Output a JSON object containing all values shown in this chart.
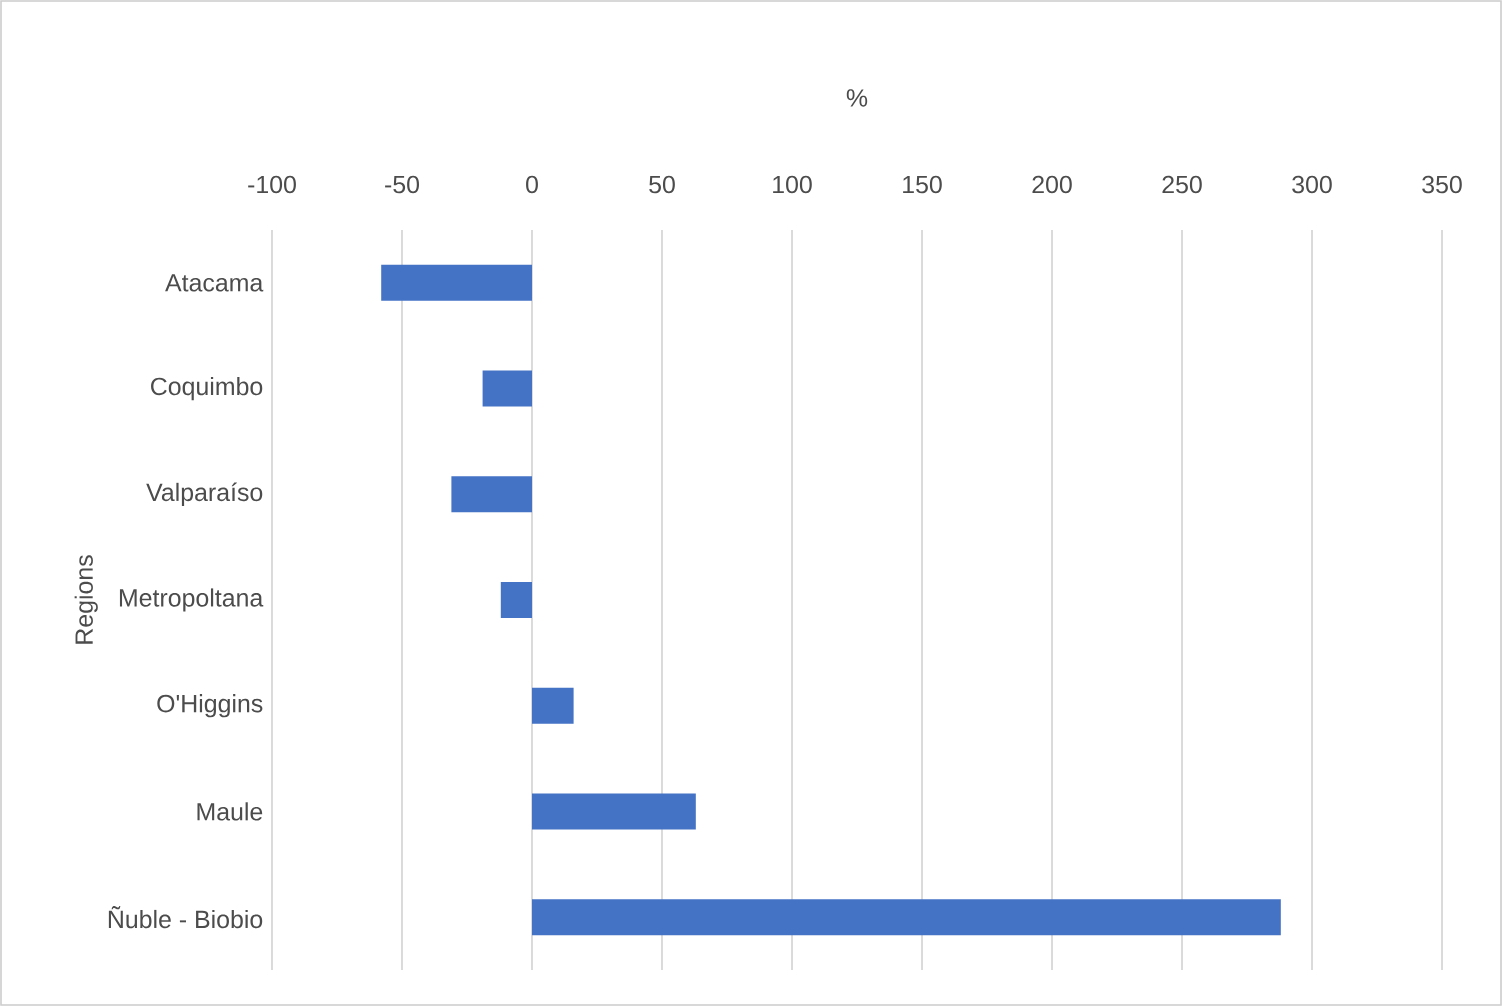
{
  "chart_data": {
    "type": "bar",
    "orientation": "horizontal",
    "xlabel": "%",
    "ylabel": "Regions",
    "categories": [
      "Atacama",
      "Coquimbo",
      "Valparaíso",
      "Metropoltana",
      "O'Higgins",
      "Maule",
      "Ñuble - Biobio"
    ],
    "values": [
      -58,
      -19,
      -31,
      -12,
      16,
      63,
      288
    ],
    "color": "#4472c4",
    "xlim": [
      -100,
      350
    ],
    "xticks": [
      -100,
      -50,
      0,
      50,
      100,
      150,
      200,
      250,
      300,
      350
    ],
    "grid": "x"
  }
}
